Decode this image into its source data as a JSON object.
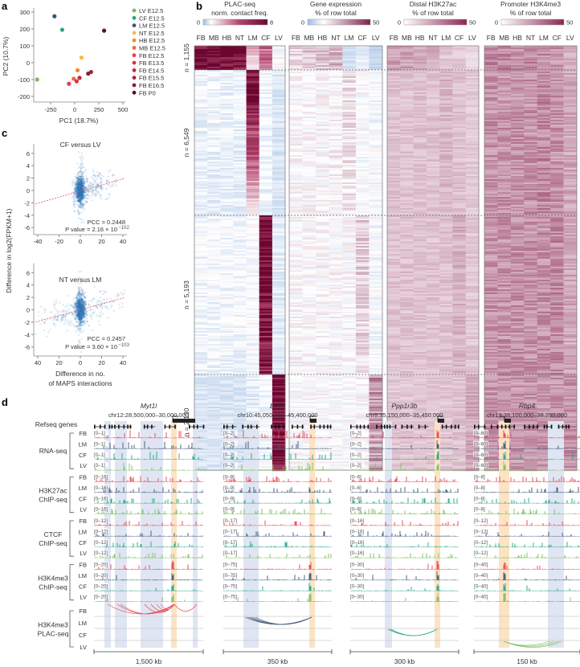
{
  "panel_labels": {
    "a": "a",
    "b": "b",
    "c": "c",
    "d": "d"
  },
  "chart_data": [
    {
      "type": "scatter",
      "xlabel": "PC1 (18.7%)",
      "ylabel": "PC2 (10.7%)",
      "xlim": [
        -420,
        560
      ],
      "ylim": [
        -230,
        320
      ],
      "xticks": [
        {
          "v": -250,
          "label": "-250"
        },
        {
          "v": 0,
          "label": "0"
        },
        {
          "v": 250,
          "label": "250"
        },
        {
          "v": 500,
          "label": "500"
        }
      ],
      "yticks": [
        {
          "v": 300,
          "label": "300"
        },
        {
          "v": 200,
          "label": "200"
        },
        {
          "v": 100,
          "label": "100"
        },
        {
          "v": 0,
          "label": "0"
        },
        {
          "v": -100,
          "label": "-100"
        },
        {
          "v": -200,
          "label": "-200"
        }
      ],
      "points": [
        {
          "label": "LV E12.5",
          "x": -390,
          "y": -100,
          "color": "#7dbb5e"
        },
        {
          "label": "CF E12.5",
          "x": -130,
          "y": 195,
          "color": "#2ba57f"
        },
        {
          "label": "LM E12.5",
          "x": -210,
          "y": 275,
          "color": "#3e5574"
        },
        {
          "label": "NT E12.5",
          "x": 70,
          "y": 30,
          "color": "#f5b942"
        },
        {
          "label": "HB E12.5",
          "x": 30,
          "y": -45,
          "color": "#f08a2c"
        },
        {
          "label": "MB E12.5",
          "x": -10,
          "y": -95,
          "color": "#ef6a3a"
        },
        {
          "label": "FB E12.5",
          "x": -60,
          "y": -125,
          "color": "#ef3b4e"
        },
        {
          "label": "FB E13.5",
          "x": 20,
          "y": -110,
          "color": "#d93246"
        },
        {
          "label": "FB E14.5",
          "x": 50,
          "y": -90,
          "color": "#c02b40"
        },
        {
          "label": "FB E15.5",
          "x": 170,
          "y": -55,
          "color": "#a82638"
        },
        {
          "label": "FB E16.5",
          "x": 140,
          "y": -65,
          "color": "#8a1f2e"
        },
        {
          "label": "FB P0",
          "x": 305,
          "y": 190,
          "color": "#5a1420"
        }
      ]
    },
    {
      "type": "heatmap",
      "columns": [
        "FB",
        "MB",
        "HB",
        "NT",
        "LM",
        "CF",
        "LV"
      ],
      "segments": [
        {
          "label": "n = 1,155"
        },
        {
          "label": "n = 6,549"
        },
        {
          "label": "n = 5,193"
        },
        {
          "label": "n = 2,130"
        }
      ],
      "panels": [
        {
          "title1": "PLAC-seq",
          "title2": "norm. contact freq.",
          "cbar_min": "0",
          "cbar_max": "8",
          "scale": "plac",
          "max": 8,
          "values": [
            [
              [
                8,
                8
              ],
              [
                8,
                8
              ],
              [
                8,
                8
              ],
              [
                8,
                7
              ],
              [
                2.5,
                1
              ],
              [
                4,
                3
              ],
              [
                1,
                1
              ]
            ],
            [
              [
                0.8,
                0.7
              ],
              [
                0.8,
                0.7
              ],
              [
                0.8,
                0.7
              ],
              [
                0.8,
                0.7
              ],
              [
                8,
                1.2
              ],
              [
                0.9,
                0.8
              ],
              [
                0.6,
                0.6
              ]
            ],
            [
              [
                0.9,
                0.8
              ],
              [
                0.9,
                0.8
              ],
              [
                0.9,
                0.8
              ],
              [
                0.9,
                0.8
              ],
              [
                1.0,
                0.9
              ],
              [
                8,
                6.5
              ],
              [
                0.7,
                0.7
              ]
            ],
            [
              [
                0.6,
                0.6
              ],
              [
                0.6,
                0.6
              ],
              [
                0.6,
                0.6
              ],
              [
                0.6,
                0.6
              ],
              [
                0.7,
                0.7
              ],
              [
                0.9,
                0.9
              ],
              [
                8,
                7
              ]
            ]
          ]
        },
        {
          "title1": "Gene expression",
          "title2": "% of row total",
          "cbar_min": "0",
          "cbar_max": "50",
          "scale": "expr",
          "max": 50,
          "values": [
            [
              [
                20,
                20
              ],
              [
                22,
                22
              ],
              [
                22,
                22
              ],
              [
                24,
                24
              ],
              [
                7,
                7
              ],
              [
                9,
                9
              ],
              [
                5,
                5
              ]
            ],
            [
              [
                14,
                14
              ],
              [
                14,
                14
              ],
              [
                14,
                14
              ],
              [
                15,
                15
              ],
              [
                19,
                17
              ],
              [
                13,
                13
              ],
              [
                12,
                12
              ]
            ],
            [
              [
                14,
                14
              ],
              [
                14,
                14
              ],
              [
                14,
                14
              ],
              [
                14,
                14
              ],
              [
                14,
                14
              ],
              [
                21,
                19
              ],
              [
                12,
                12
              ]
            ],
            [
              [
                13,
                13
              ],
              [
                13,
                13
              ],
              [
                13,
                13
              ],
              [
                13,
                13
              ],
              [
                13,
                13
              ],
              [
                14,
                14
              ],
              [
                30,
                28
              ]
            ]
          ]
        },
        {
          "title1": "Distal H3K27ac",
          "title2": "% of row total",
          "cbar_min": "0",
          "cbar_max": "50",
          "scale": "chip",
          "max": 50,
          "values": [
            [
              [
                22,
                22
              ],
              [
                22,
                22
              ],
              [
                22,
                22
              ],
              [
                20,
                20
              ],
              [
                13,
                13
              ],
              [
                12,
                12
              ],
              [
                9,
                9
              ]
            ],
            [
              [
                14,
                14
              ],
              [
                14,
                14
              ],
              [
                14,
                14
              ],
              [
                14,
                14
              ],
              [
                17,
                16
              ],
              [
                14,
                14
              ],
              [
                12,
                12
              ]
            ],
            [
              [
                14,
                14
              ],
              [
                14,
                14
              ],
              [
                14,
                14
              ],
              [
                14,
                14
              ],
              [
                14,
                14
              ],
              [
                18,
                17
              ],
              [
                13,
                13
              ]
            ],
            [
              [
                13,
                13
              ],
              [
                13,
                13
              ],
              [
                13,
                13
              ],
              [
                13,
                13
              ],
              [
                13,
                13
              ],
              [
                14,
                14
              ],
              [
                20,
                20
              ]
            ]
          ]
        },
        {
          "title1": "Promoter H3K4me3",
          "title2": "% of row total",
          "cbar_min": "0",
          "cbar_max": "50",
          "scale": "chip",
          "max": 50,
          "values": [
            [
              [
                27,
                27
              ],
              [
                27,
                27
              ],
              [
                26,
                26
              ],
              [
                26,
                26
              ],
              [
                27,
                27
              ],
              [
                25,
                25
              ],
              [
                18,
                18
              ]
            ],
            [
              [
                25,
                25
              ],
              [
                25,
                25
              ],
              [
                25,
                25
              ],
              [
                25,
                25
              ],
              [
                27,
                27
              ],
              [
                25,
                25
              ],
              [
                20,
                20
              ]
            ],
            [
              [
                25,
                25
              ],
              [
                25,
                25
              ],
              [
                25,
                25
              ],
              [
                25,
                25
              ],
              [
                25,
                25
              ],
              [
                27,
                27
              ],
              [
                20,
                20
              ]
            ],
            [
              [
                24,
                24
              ],
              [
                24,
                24
              ],
              [
                24,
                24
              ],
              [
                24,
                24
              ],
              [
                24,
                24
              ],
              [
                25,
                25
              ],
              [
                25,
                25
              ]
            ]
          ]
        }
      ]
    },
    {
      "type": "scatter",
      "title": "CF versus LV",
      "xlim": [
        -44,
        44
      ],
      "ylim": [
        -7.5,
        7.5
      ],
      "xticks": [
        {
          "v": -40,
          "label": "-40"
        },
        {
          "v": -20,
          "label": "-20"
        },
        {
          "v": 0,
          "label": "0"
        },
        {
          "v": 20,
          "label": "20"
        },
        {
          "v": 40,
          "label": "40"
        }
      ],
      "yticks": [
        {
          "v": 6,
          "label": "6"
        },
        {
          "v": 4,
          "label": "4"
        },
        {
          "v": 2,
          "label": "2"
        },
        {
          "v": 0,
          "label": "0"
        },
        {
          "v": -2,
          "label": "-2"
        },
        {
          "v": -4,
          "label": "-4"
        },
        {
          "v": -6,
          "label": "-6"
        }
      ],
      "pcc": "PCC = 0.2448",
      "pvalue": "P value = 2.16 × 10",
      "pvalue_exp": "−102",
      "fit": {
        "slope": 0.049,
        "intercept": -0.1
      }
    },
    {
      "type": "scatter",
      "title": "NT versus LM",
      "xlim": [
        -44,
        44
      ],
      "ylim": [
        -7.5,
        7.5
      ],
      "xticks": [
        {
          "v": -40,
          "label": "40"
        },
        {
          "v": -20,
          "label": "20"
        },
        {
          "v": 0,
          "label": "0"
        },
        {
          "v": 20,
          "label": "20"
        },
        {
          "v": 40,
          "label": "40"
        }
      ],
      "yticks": [
        {
          "v": 6,
          "label": "6"
        },
        {
          "v": 4,
          "label": "4"
        },
        {
          "v": 2,
          "label": "2"
        },
        {
          "v": 0,
          "label": "0"
        },
        {
          "v": -2,
          "label": "-2"
        },
        {
          "v": -4,
          "label": "-4"
        },
        {
          "v": -6,
          "label": "-6"
        }
      ],
      "pcc": "PCC = 0.2457",
      "pvalue": "P value = 3.60 × 10",
      "pvalue_exp": "−103",
      "fit": {
        "slope": 0.047,
        "intercept": 0.0
      },
      "xlabel1": "Difference in no.",
      "xlabel2": "of MAPS interactions",
      "ylabel": "Difference in log2(FPKM+1)"
    },
    {
      "type": "tracks",
      "refseq_label": "Refseq genes",
      "cells": [
        "FB",
        "LM",
        "CF",
        "LV"
      ],
      "cell_colors": [
        "#e8414e",
        "#3d5373",
        "#20a383",
        "#7bbf5a"
      ],
      "assays": [
        {
          "line1": "RNA-seq",
          "line2": ""
        },
        {
          "line1": "H3K27ac",
          "line2": "ChIP-seq"
        },
        {
          "line1": "CTCF",
          "line2": "ChIP-seq"
        },
        {
          "line1": "H3K4me3",
          "line2": "ChIP-seq"
        },
        {
          "line1": "H3K4me3",
          "line2": "PLAC-seq"
        }
      ],
      "loci": [
        {
          "gene": "Myt1l",
          "coords": "chr12:28,500,000–30,000,000",
          "scale_bar": "1,500 kb",
          "ranges": [
            "[0–1]",
            "[0–16]",
            "[0–12]",
            "[0–20]"
          ]
        },
        {
          "gene": "Bves",
          "coords": "chr10:45,050,000–45,400,000",
          "scale_bar": "350 kb",
          "ranges": [
            "[0–2]",
            "[0–9]",
            "[0–17]",
            "[0–75]"
          ]
        },
        {
          "gene": "Ppp1r3b",
          "coords": "chr8:35,150,000–35,450,000",
          "scale_bar": "300 kb",
          "ranges": [
            "[0–2]",
            "[0–6]",
            "[0–16]",
            "[0–30]"
          ]
        },
        {
          "gene": "Rbp4",
          "coords": "chr19:38,100,000–38,250,000",
          "scale_bar": "150 kb",
          "ranges": [
            "[0–60]",
            "[0–8]",
            "[0–12]",
            "[0–40]"
          ]
        }
      ]
    }
  ]
}
